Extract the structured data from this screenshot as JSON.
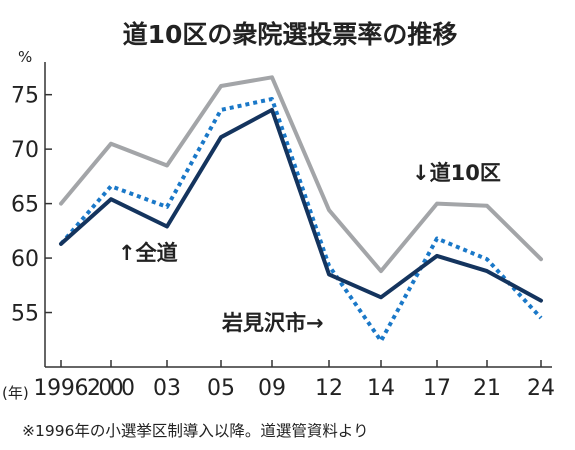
{
  "chart_data": {
    "type": "line",
    "title": "道10区の衆院選投票率の推移",
    "ylabel": "%",
    "xlabel": "(年)",
    "x": [
      "1996",
      "2000",
      "03",
      "05",
      "09",
      "12",
      "14",
      "17",
      "21",
      "24"
    ],
    "ylim": [
      50,
      78
    ],
    "yticks": [
      55,
      60,
      65,
      70,
      75
    ],
    "grid": false,
    "legend": "none",
    "series": [
      {
        "name": "↓道10区",
        "color": "#a3a5a8",
        "style": "solid",
        "values": [
          65.0,
          70.5,
          68.5,
          75.8,
          76.6,
          64.4,
          58.8,
          65.0,
          64.8,
          59.9
        ]
      },
      {
        "name": "↑全道",
        "color": "#1a78c8",
        "style": "dotted",
        "values": [
          61.3,
          66.6,
          64.7,
          73.6,
          74.6,
          59.3,
          52.4,
          61.8,
          59.9,
          54.5
        ]
      },
      {
        "name": "岩見沢市→",
        "color": "#14345e",
        "style": "solid",
        "values": [
          61.3,
          65.4,
          62.9,
          71.1,
          73.6,
          58.5,
          56.4,
          60.2,
          58.8,
          56.1
        ]
      }
    ],
    "note": "※1996年の小選挙区制導入以降。道選管資料より"
  }
}
